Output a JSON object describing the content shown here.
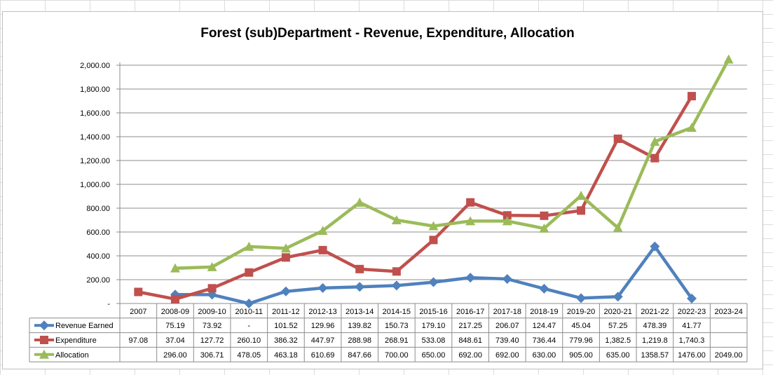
{
  "chart_data": {
    "type": "line",
    "title": "Forest (sub)Department - Revenue, Expenditure, Allocation",
    "categories": [
      "2007",
      "2008-09",
      "2009-10",
      "2010-11",
      "2011-12",
      "2012-13",
      "2013-14",
      "2014-15",
      "2015-16",
      "2016-17",
      "2017-18",
      "2018-19",
      "2019-20",
      "2020-21",
      "2021-22",
      "2022-23",
      "2023-24"
    ],
    "ylim": [
      0,
      2000
    ],
    "yticks": [
      0,
      200,
      400,
      600,
      800,
      1000,
      1200,
      1400,
      1600,
      1800,
      2000
    ],
    "ytick_labels": [
      "-",
      "200.00",
      "400.00",
      "600.00",
      "800.00",
      "1,000.00",
      "1,200.00",
      "1,400.00",
      "1,600.00",
      "1,800.00",
      "2,000.00"
    ],
    "grid": true,
    "legend": "data-table-left",
    "series": [
      {
        "name": "Revenue Earned",
        "color": "#4f81bd",
        "marker": "diamond",
        "values": [
          null,
          75.19,
          73.92,
          0,
          101.52,
          129.96,
          139.82,
          150.73,
          179.1,
          217.25,
          206.07,
          124.47,
          45.04,
          57.25,
          478.39,
          41.77,
          null
        ],
        "labels": [
          "",
          "75.19",
          "73.92",
          "-",
          "101.52",
          "129.96",
          "139.82",
          "150.73",
          "179.10",
          "217.25",
          "206.07",
          "124.47",
          "45.04",
          "57.25",
          "478.39",
          "41.77",
          ""
        ]
      },
      {
        "name": "Expenditure",
        "color": "#c0504d",
        "marker": "square",
        "values": [
          97.08,
          37.04,
          127.72,
          260.1,
          386.32,
          447.97,
          288.98,
          268.91,
          533.08,
          848.61,
          739.4,
          736.44,
          779.96,
          1382.5,
          1219.8,
          1740.3,
          null
        ],
        "labels": [
          "97.08",
          "37.04",
          "127.72",
          "260.10",
          "386.32",
          "447.97",
          "288.98",
          "268.91",
          "533.08",
          "848.61",
          "739.40",
          "736.44",
          "779.96",
          "1,382.5",
          "1,219.8",
          "1,740.3",
          ""
        ]
      },
      {
        "name": "Allocation",
        "color": "#9bbb59",
        "marker": "triangle",
        "values": [
          null,
          296.0,
          306.71,
          478.05,
          463.18,
          610.69,
          847.66,
          700.0,
          650.0,
          692.0,
          692.0,
          630.0,
          905.0,
          635.0,
          1358.57,
          1476.0,
          2049.0
        ],
        "labels": [
          "",
          "296.00",
          "306.71",
          "478.05",
          "463.18",
          "610.69",
          "847.66",
          "700.00",
          "650.00",
          "692.00",
          "692.00",
          "630.00",
          "905.00",
          "635.00",
          "1358.57",
          "1476.00",
          "2049.00"
        ]
      }
    ]
  }
}
